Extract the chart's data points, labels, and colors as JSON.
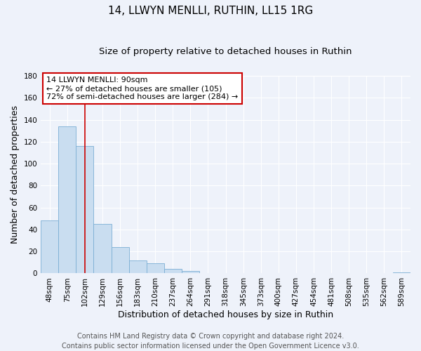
{
  "title": "14, LLWYN MENLLI, RUTHIN, LL15 1RG",
  "subtitle": "Size of property relative to detached houses in Ruthin",
  "xlabel": "Distribution of detached houses by size in Ruthin",
  "ylabel": "Number of detached properties",
  "bar_labels": [
    "48sqm",
    "75sqm",
    "102sqm",
    "129sqm",
    "156sqm",
    "183sqm",
    "210sqm",
    "237sqm",
    "264sqm",
    "291sqm",
    "318sqm",
    "345sqm",
    "373sqm",
    "400sqm",
    "427sqm",
    "454sqm",
    "481sqm",
    "508sqm",
    "535sqm",
    "562sqm",
    "589sqm"
  ],
  "bar_values": [
    48,
    134,
    116,
    45,
    24,
    12,
    9,
    4,
    2,
    0,
    0,
    0,
    0,
    0,
    0,
    0,
    0,
    0,
    0,
    0,
    1
  ],
  "bar_color": "#c9ddf0",
  "bar_edge_color": "#7baed4",
  "ylim": [
    0,
    180
  ],
  "yticks": [
    0,
    20,
    40,
    60,
    80,
    100,
    120,
    140,
    160,
    180
  ],
  "vline_x": 2.0,
  "vline_color": "#cc0000",
  "annotation_title": "14 LLWYN MENLLI: 90sqm",
  "annotation_line1": "← 27% of detached houses are smaller (105)",
  "annotation_line2": "72% of semi-detached houses are larger (284) →",
  "annotation_box_facecolor": "#ffffff",
  "annotation_box_edgecolor": "#cc0000",
  "footer1": "Contains HM Land Registry data © Crown copyright and database right 2024.",
  "footer2": "Contains public sector information licensed under the Open Government Licence v3.0.",
  "background_color": "#eef2fa",
  "grid_color": "#ffffff",
  "title_fontsize": 11,
  "subtitle_fontsize": 9.5,
  "axis_label_fontsize": 9,
  "tick_fontsize": 7.5,
  "annotation_fontsize": 8,
  "footer_fontsize": 7
}
